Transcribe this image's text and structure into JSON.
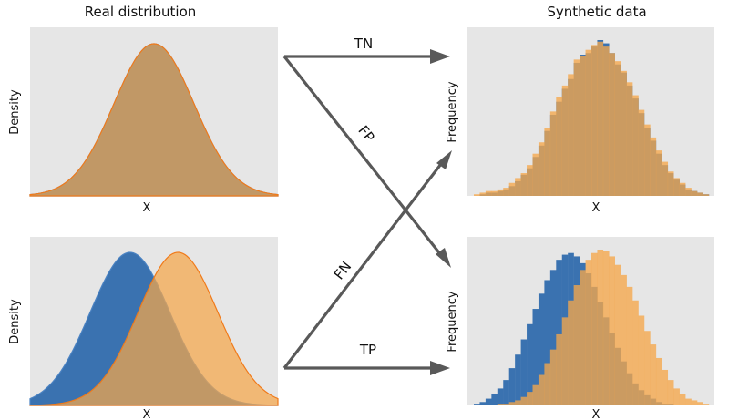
{
  "titles": {
    "left": "Real distribution",
    "right": "Synthetic data"
  },
  "colors": {
    "blue": "#3a72b0",
    "orange": "#f5a64a",
    "overlap": "#9e7f52",
    "orange_edge": "#f07a1a",
    "blue_edge": "#4b83c3",
    "panel_bg": "#e6e6e6",
    "arrow": "#595959"
  },
  "arrows": {
    "tn": "TN",
    "fp": "FP",
    "fn": "FN",
    "tp": "TP"
  },
  "panels": {
    "real_top": {
      "xlabel": "X",
      "ylabel": "Density"
    },
    "real_bottom": {
      "xlabel": "X",
      "ylabel": "Density"
    },
    "synth_top": {
      "xlabel": "X",
      "ylabel": "Frequency"
    },
    "synth_bottom": {
      "xlabel": "X",
      "ylabel": "Frequency"
    }
  },
  "chart_data": [
    {
      "type": "area",
      "title": "Real distribution",
      "xlabel": "X",
      "ylabel": "Density",
      "series": [
        {
          "name": "blue",
          "mean": 0,
          "sd": 1
        },
        {
          "name": "orange",
          "mean": 0,
          "sd": 1
        }
      ]
    },
    {
      "type": "area",
      "xlabel": "X",
      "ylabel": "Density",
      "series": [
        {
          "name": "blue",
          "mean": -0.6,
          "sd": 1
        },
        {
          "name": "orange",
          "mean": 0.6,
          "sd": 1
        }
      ]
    },
    {
      "type": "bar",
      "title": "Synthetic data",
      "xlabel": "X",
      "ylabel": "Frequency",
      "series": [
        {
          "name": "blue",
          "values": [
            0,
            1,
            2,
            2,
            3,
            4,
            6,
            9,
            13,
            17,
            24,
            31,
            40,
            50,
            58,
            66,
            72,
            82,
            87,
            88,
            92,
            96,
            94,
            88,
            81,
            76,
            68,
            60,
            51,
            42,
            34,
            26,
            19,
            14,
            10,
            7,
            4,
            3,
            2,
            1
          ]
        },
        {
          "name": "orange",
          "values": [
            1,
            2,
            3,
            3,
            4,
            5,
            8,
            11,
            14,
            19,
            26,
            33,
            42,
            52,
            61,
            68,
            75,
            84,
            86,
            90,
            93,
            95,
            92,
            88,
            83,
            77,
            70,
            62,
            53,
            44,
            36,
            28,
            21,
            15,
            11,
            8,
            5,
            3,
            2,
            1
          ]
        }
      ]
    },
    {
      "type": "bar",
      "xlabel": "X",
      "ylabel": "Frequency",
      "series": [
        {
          "name": "blue",
          "values": [
            1,
            2,
            4,
            7,
            10,
            15,
            22,
            30,
            39,
            48,
            57,
            66,
            74,
            80,
            86,
            89,
            90,
            88,
            84,
            78,
            70,
            61,
            52,
            43,
            34,
            26,
            19,
            13,
            9,
            6,
            4,
            2,
            1,
            1,
            0,
            0,
            0,
            0,
            0,
            0
          ]
        },
        {
          "name": "orange",
          "values": [
            0,
            0,
            0,
            0,
            1,
            1,
            2,
            3,
            5,
            8,
            12,
            18,
            25,
            33,
            42,
            52,
            62,
            71,
            80,
            86,
            90,
            92,
            91,
            88,
            83,
            77,
            70,
            62,
            53,
            44,
            36,
            28,
            21,
            15,
            10,
            7,
            4,
            3,
            2,
            1
          ]
        }
      ]
    }
  ]
}
